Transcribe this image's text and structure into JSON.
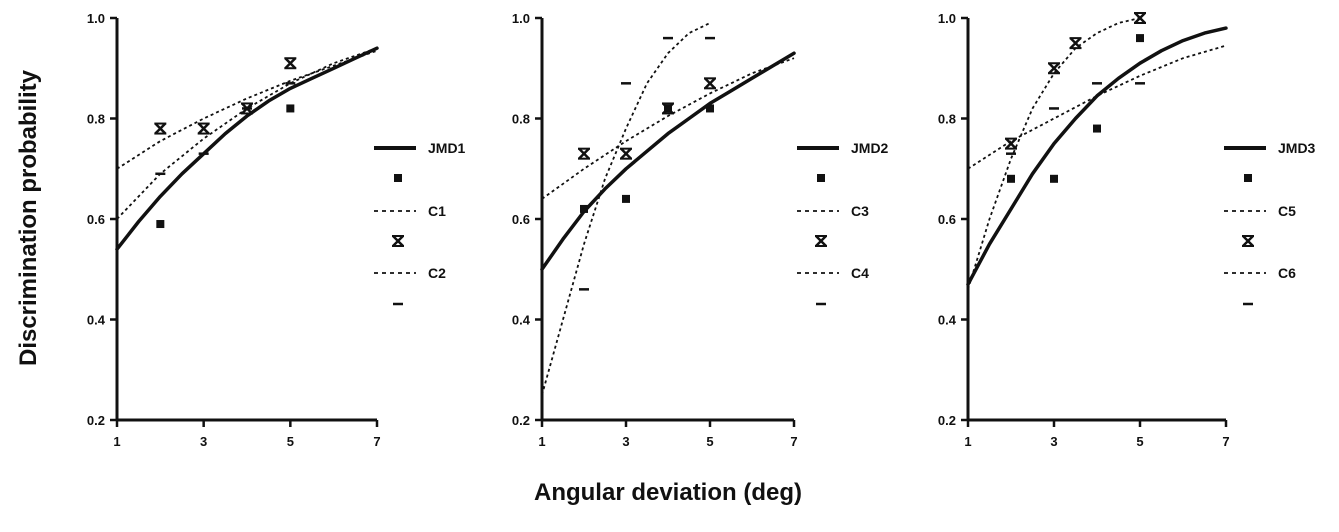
{
  "figure": {
    "ylabel": "Discrimination probability",
    "xlabel": "Angular deviation (deg)"
  },
  "chart_data": [
    {
      "type": "scatter",
      "xlim": [
        1,
        7
      ],
      "ylim": [
        0.2,
        1.0
      ],
      "xticks": [
        "1",
        "3",
        "5",
        "7"
      ],
      "yticks": [
        "0.2",
        "0.4",
        "0.6",
        "0.8",
        "1.0"
      ],
      "legend_position": "right",
      "series": [
        {
          "name": "JMD1",
          "kind": "fit",
          "style": "solid",
          "x": [
            1,
            1.5,
            2,
            2.5,
            3,
            3.5,
            4,
            4.5,
            5,
            5.5,
            6,
            6.5,
            7
          ],
          "y": [
            0.54,
            0.595,
            0.645,
            0.69,
            0.73,
            0.77,
            0.805,
            0.835,
            0.86,
            0.88,
            0.9,
            0.92,
            0.94
          ]
        },
        {
          "name": "",
          "kind": "points",
          "marker": "square",
          "x": [
            2,
            5
          ],
          "y": [
            0.59,
            0.82
          ]
        },
        {
          "name": "C1",
          "kind": "fit",
          "style": "dotted",
          "x": [
            1,
            2,
            3,
            4,
            5,
            6,
            7
          ],
          "y": [
            0.7,
            0.755,
            0.8,
            0.84,
            0.875,
            0.905,
            0.935
          ]
        },
        {
          "name": "",
          "kind": "points",
          "marker": "star",
          "x": [
            2,
            3,
            4,
            5
          ],
          "y": [
            0.78,
            0.78,
            0.82,
            0.91
          ]
        },
        {
          "name": "C2",
          "kind": "fit",
          "style": "dotted",
          "x": [
            1,
            2,
            3,
            4,
            5,
            6,
            7
          ],
          "y": [
            0.6,
            0.69,
            0.76,
            0.82,
            0.87,
            0.91,
            0.94
          ]
        },
        {
          "name": "",
          "kind": "points",
          "marker": "dash",
          "x": [
            2,
            3,
            4,
            5
          ],
          "y": [
            0.69,
            0.73,
            0.82,
            0.87
          ]
        }
      ]
    },
    {
      "type": "scatter",
      "xlim": [
        1,
        7
      ],
      "ylim": [
        0.2,
        1.0
      ],
      "xticks": [
        "1",
        "3",
        "5",
        "7"
      ],
      "yticks": [
        "0.2",
        "0.4",
        "0.6",
        "0.8",
        "1.0"
      ],
      "legend_position": "right",
      "series": [
        {
          "name": "JMD2",
          "kind": "fit",
          "style": "solid",
          "x": [
            1,
            1.5,
            2,
            2.5,
            3,
            3.5,
            4,
            4.5,
            5,
            5.5,
            6,
            6.5,
            7
          ],
          "y": [
            0.5,
            0.56,
            0.615,
            0.66,
            0.7,
            0.735,
            0.77,
            0.8,
            0.83,
            0.855,
            0.88,
            0.905,
            0.93
          ]
        },
        {
          "name": "",
          "kind": "points",
          "marker": "square",
          "x": [
            2,
            3,
            4,
            5
          ],
          "y": [
            0.62,
            0.64,
            0.82,
            0.82
          ]
        },
        {
          "name": "C3",
          "kind": "fit",
          "style": "dotted",
          "x": [
            1,
            2,
            3,
            4,
            5,
            6,
            7
          ],
          "y": [
            0.64,
            0.7,
            0.755,
            0.805,
            0.85,
            0.89,
            0.92
          ]
        },
        {
          "name": "",
          "kind": "points",
          "marker": "star",
          "x": [
            2,
            3,
            4,
            5
          ],
          "y": [
            0.73,
            0.73,
            0.82,
            0.87
          ]
        },
        {
          "name": "C4",
          "kind": "fit",
          "style": "dotted",
          "x": [
            1,
            1.5,
            2,
            2.5,
            3,
            3.5,
            4,
            4.5,
            5
          ],
          "y": [
            0.25,
            0.4,
            0.55,
            0.68,
            0.78,
            0.87,
            0.93,
            0.97,
            0.99
          ]
        },
        {
          "name": "",
          "kind": "points",
          "marker": "dash",
          "x": [
            2,
            3,
            4,
            5
          ],
          "y": [
            0.46,
            0.87,
            0.96,
            0.96
          ]
        }
      ]
    },
    {
      "type": "scatter",
      "xlim": [
        1,
        7
      ],
      "ylim": [
        0.2,
        1.0
      ],
      "xticks": [
        "1",
        "3",
        "5",
        "7"
      ],
      "yticks": [
        "0.2",
        "0.4",
        "0.6",
        "0.8",
        "1.0"
      ],
      "legend_position": "right",
      "series": [
        {
          "name": "JMD3",
          "kind": "fit",
          "style": "solid",
          "x": [
            1,
            1.5,
            2,
            2.5,
            3,
            3.5,
            4,
            4.5,
            5,
            5.5,
            6,
            6.5,
            7
          ],
          "y": [
            0.47,
            0.55,
            0.62,
            0.69,
            0.75,
            0.8,
            0.845,
            0.88,
            0.91,
            0.935,
            0.955,
            0.97,
            0.98
          ]
        },
        {
          "name": "",
          "kind": "points",
          "marker": "square",
          "x": [
            2,
            3,
            4,
            5
          ],
          "y": [
            0.68,
            0.68,
            0.78,
            0.96
          ]
        },
        {
          "name": "C5",
          "kind": "fit",
          "style": "dotted",
          "x": [
            1,
            2,
            3,
            4,
            5,
            6,
            7
          ],
          "y": [
            0.7,
            0.755,
            0.8,
            0.845,
            0.885,
            0.92,
            0.945
          ]
        },
        {
          "name": "",
          "kind": "points",
          "marker": "star",
          "x": [
            2,
            3,
            3.5,
            5
          ],
          "y": [
            0.75,
            0.9,
            0.95,
            1.0
          ]
        },
        {
          "name": "C6",
          "kind": "fit",
          "style": "dotted",
          "x": [
            1,
            1.5,
            2,
            2.5,
            3,
            3.5,
            4,
            4.5,
            5
          ],
          "y": [
            0.46,
            0.6,
            0.72,
            0.82,
            0.89,
            0.94,
            0.97,
            0.99,
            1.0
          ]
        },
        {
          "name": "",
          "kind": "points",
          "marker": "dash",
          "x": [
            2,
            3,
            4,
            5
          ],
          "y": [
            0.73,
            0.82,
            0.87,
            0.87
          ]
        }
      ]
    }
  ]
}
